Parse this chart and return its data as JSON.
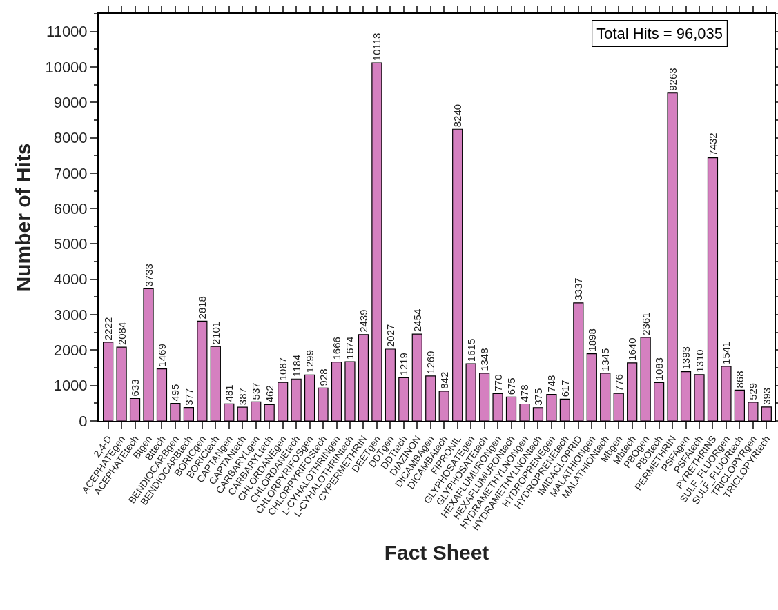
{
  "chart_data": {
    "type": "bar",
    "xlabel": "Fact Sheet",
    "ylabel": "Number of Hits",
    "annotations": [
      "Total Hits = 96,035"
    ],
    "categories": [
      "2,4-D",
      "ACEPHATEgen",
      "ACEPHATEtech",
      "Btgen",
      "Bttech",
      "BENDIOCARBgen",
      "BENDIOCARBtech",
      "BORICgen",
      "BORICtech",
      "CAPTANgen",
      "CAPTANtech",
      "CARBARYLgen",
      "CARBARYLtech",
      "CHLORDANEgen",
      "CHLORDANEtech",
      "CHLORPYRIFOSgen",
      "CHLORPYRIFOStech",
      "L-CYHALOTHRINgen",
      "L-CYHALOTHRINtech",
      "CYPERMETHRIN",
      "DEETgen",
      "DDTgen",
      "DDTtech",
      "DIAZINON",
      "DICAMBAgen",
      "DICAMBAtech",
      "FIPRONIL",
      "GLYPHOSATEgen",
      "GLYPHOSATEtech",
      "HEXAFLUMURONgen",
      "HEXAFLUMURONtech",
      "HYDRAMETHYLNONgen",
      "HYDRAMETHYLNONtech",
      "HYDROPRENEgen",
      "HYDROPRENEtech",
      "IMIDACLOPRID",
      "MALATHIONgen",
      "MALATHIONtech",
      "Mbgen",
      "Mbtech",
      "PBOgen",
      "PBOtech",
      "PERMETHRIN",
      "PSFAgen",
      "PSFAtech",
      "PYRETHRINS",
      "SULF_FLUORgen",
      "SULF_FLUORtech",
      "TRICLOPYRgen",
      "TRICLOPYRtech"
    ],
    "values": [
      2222,
      2084,
      633,
      3733,
      1469,
      495,
      377,
      2818,
      2101,
      481,
      387,
      537,
      462,
      1087,
      1184,
      1299,
      928,
      1666,
      1674,
      2439,
      10113,
      2027,
      1219,
      2454,
      1269,
      842,
      8240,
      1615,
      1348,
      770,
      675,
      478,
      375,
      748,
      617,
      3337,
      1898,
      1345,
      776,
      1640,
      2361,
      1083,
      9263,
      1393,
      1310,
      7432,
      1541,
      868,
      529,
      393
    ],
    "color": "#d580c0",
    "data_labels": true,
    "ylim": [
      0,
      11500
    ],
    "yticks": [
      0,
      1000,
      2000,
      3000,
      4000,
      5000,
      6000,
      7000,
      8000,
      9000,
      10000,
      11000
    ],
    "grid": false
  }
}
